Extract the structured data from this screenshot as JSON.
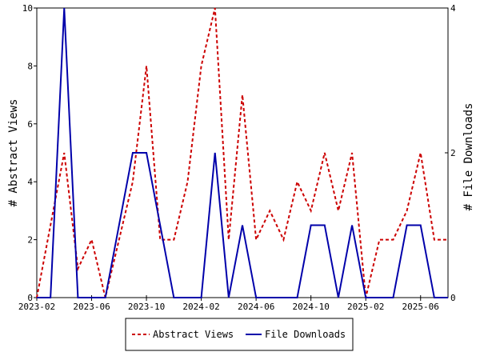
{
  "chart_data": {
    "type": "line",
    "x": [
      "2023-02",
      "2023-03",
      "2023-04",
      "2023-05",
      "2023-06",
      "2023-07",
      "2023-08",
      "2023-09",
      "2023-10",
      "2023-11",
      "2023-12",
      "2024-01",
      "2024-02",
      "2024-03",
      "2024-04",
      "2024-05",
      "2024-06",
      "2024-07",
      "2024-08",
      "2024-09",
      "2024-10",
      "2024-11",
      "2024-12",
      "2025-01",
      "2025-02",
      "2025-03",
      "2025-04",
      "2025-05",
      "2025-06",
      "2025-07",
      "2025-08"
    ],
    "x_ticks": [
      "2023-02",
      "2023-06",
      "2023-10",
      "2024-02",
      "2024-06",
      "2024-10",
      "2025-02",
      "2025-06"
    ],
    "series": [
      {
        "name": "Abstract Views",
        "axis": "left",
        "color": "#cc0000",
        "style": "dashed",
        "values": [
          0,
          2.5,
          5,
          1,
          2,
          0,
          2,
          4,
          8,
          2,
          2,
          4,
          8,
          10,
          2,
          7,
          2,
          3,
          2,
          4,
          3,
          5,
          3,
          5,
          0,
          2,
          2,
          3,
          5,
          2,
          2
        ]
      },
      {
        "name": "File Downloads",
        "axis": "right",
        "color": "#0000aa",
        "style": "solid",
        "values": [
          0,
          0,
          4,
          0,
          0,
          0,
          1,
          2,
          2,
          1,
          0,
          0,
          0,
          2,
          0,
          1,
          0,
          0,
          0,
          0,
          1,
          1,
          0,
          1,
          0,
          0,
          0,
          1,
          1,
          0,
          0
        ]
      }
    ],
    "ylabel_left": "# Abstract Views",
    "ylabel_right": "# File Downloads",
    "ylim_left": [
      0,
      10
    ],
    "yticks_left": [
      "0",
      "2",
      "4",
      "6",
      "8",
      "10"
    ],
    "ylim_right": [
      0,
      4
    ],
    "yticks_right": [
      "0",
      "2",
      "4"
    ],
    "grid": false,
    "legend_position": "bottom-center"
  }
}
